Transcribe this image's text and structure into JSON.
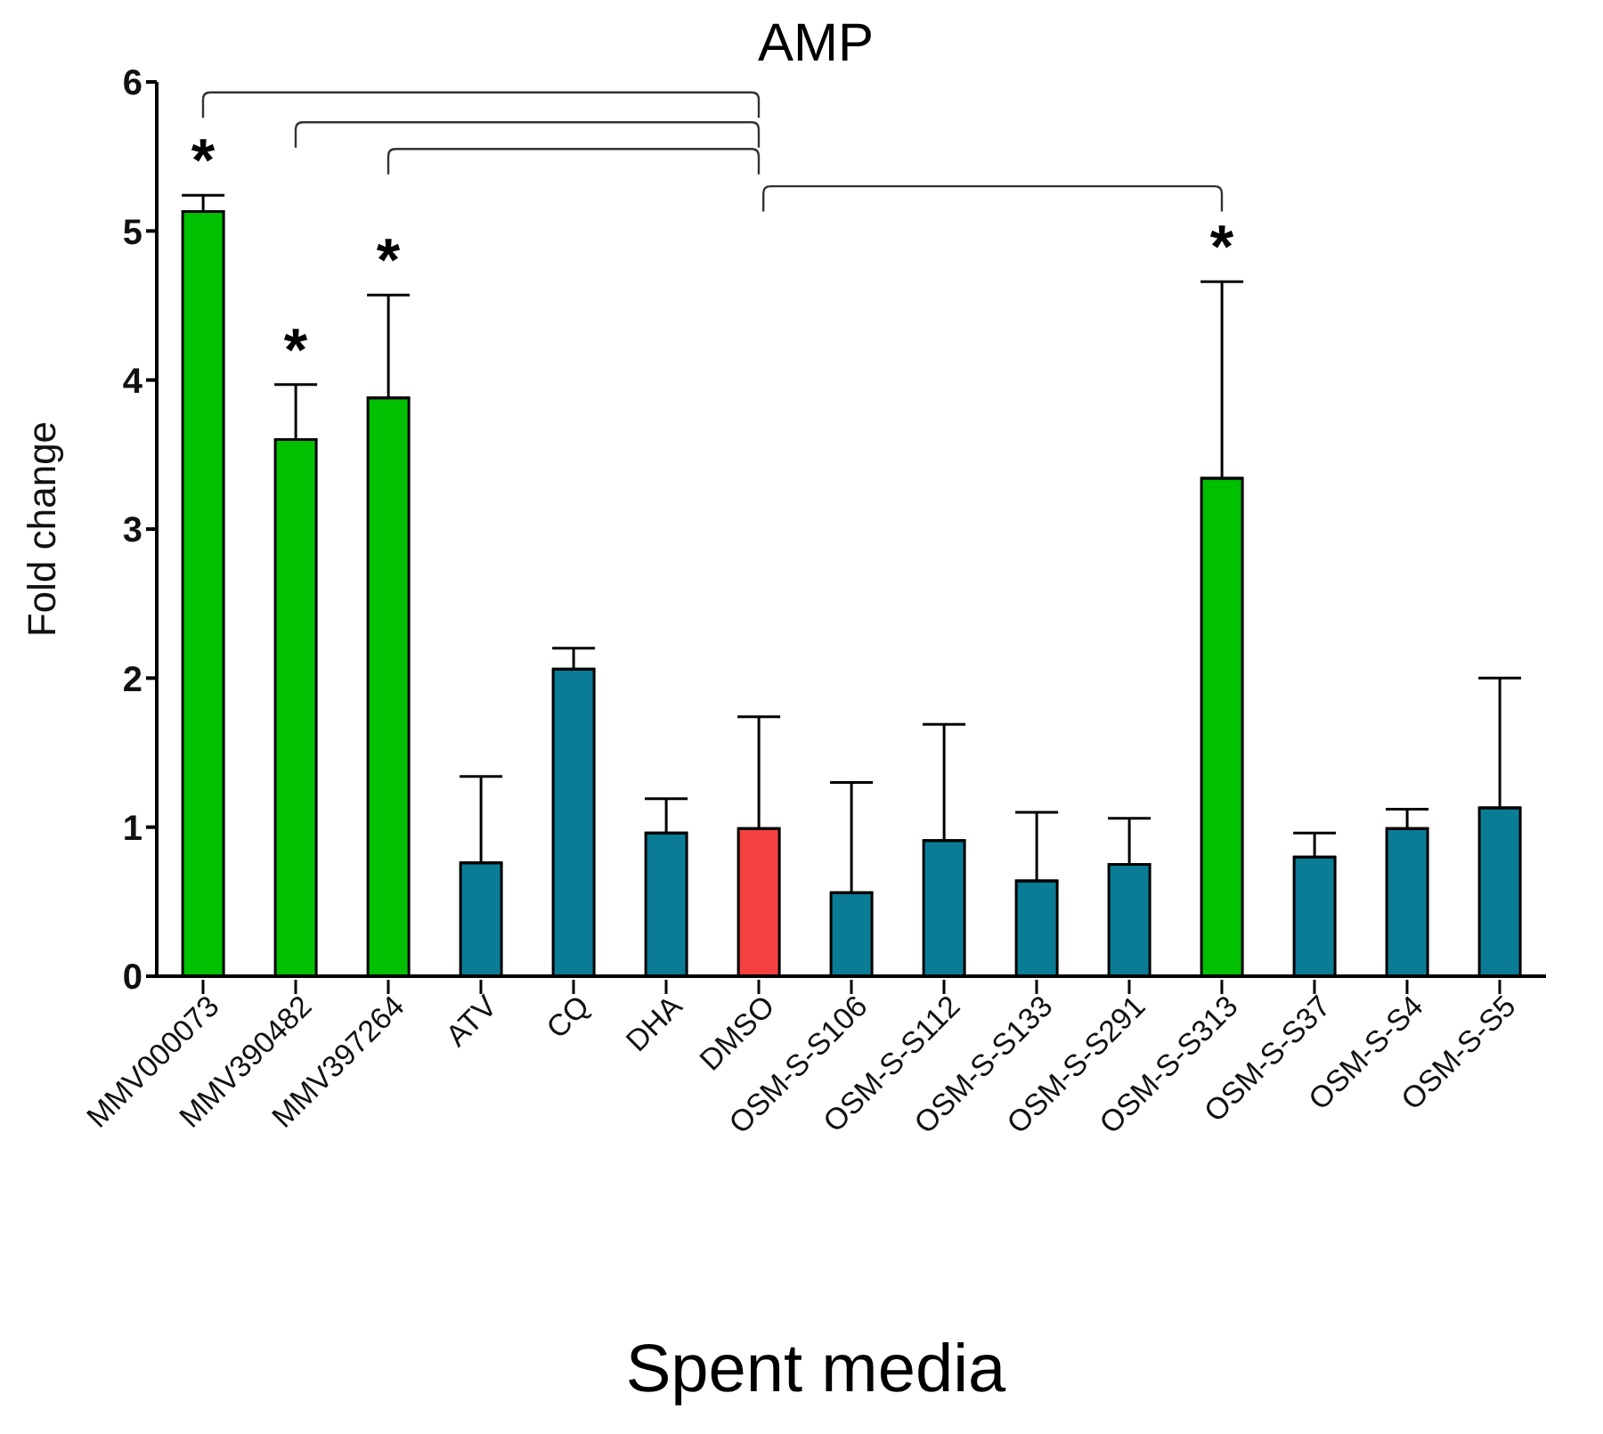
{
  "chart_data": {
    "type": "bar",
    "title": "AMP",
    "xlabel": "Spent media",
    "ylabel": "Fold change",
    "categories": [
      "MMV000073",
      "MMV390482",
      "MMV397264",
      "ATV",
      "CQ",
      "DHA",
      "DMSO",
      "OSM-S-S106",
      "OSM-S-S112",
      "OSM-S-S133",
      "OSM-S-S291",
      "OSM-S-S313",
      "OSM-S-S37",
      "OSM-S-S4",
      "OSM-S-S5"
    ],
    "values": [
      5.13,
      3.6,
      3.88,
      0.76,
      2.06,
      0.96,
      0.99,
      0.56,
      0.91,
      0.64,
      0.75,
      3.34,
      0.8,
      0.99,
      1.13
    ],
    "errors": [
      [
        5.13,
        5.24
      ],
      [
        3.6,
        3.97
      ],
      [
        3.88,
        4.57
      ],
      [
        0.76,
        1.34
      ],
      [
        2.06,
        2.2
      ],
      [
        0.96,
        1.19
      ],
      [
        0.99,
        1.74
      ],
      [
        0.56,
        1.3
      ],
      [
        0.91,
        1.69
      ],
      [
        0.64,
        1.1
      ],
      [
        0.75,
        1.06
      ],
      [
        3.34,
        4.66
      ],
      [
        0.8,
        0.96
      ],
      [
        0.99,
        1.12
      ],
      [
        1.13,
        2.0
      ]
    ],
    "colors": [
      "#00c000",
      "#00c000",
      "#00c000",
      "#0a7c96",
      "#0a7c96",
      "#0a7c96",
      "#f44040",
      "#0a7c96",
      "#0a7c96",
      "#0a7c96",
      "#0a7c96",
      "#00c000",
      "#0a7c96",
      "#0a7c96",
      "#0a7c96"
    ],
    "ylim": [
      0,
      6
    ],
    "yticks": [
      0,
      1,
      2,
      3,
      4,
      5,
      6
    ],
    "grid": false,
    "legend": false,
    "annotations": [
      {
        "text": "*",
        "x": "MMV000073",
        "y": 5.24
      },
      {
        "text": "*",
        "x": "MMV390482",
        "y": 3.97
      },
      {
        "text": "*",
        "x": "MMV397264",
        "y": 4.57
      },
      {
        "text": "*",
        "x": "OSM-S-S313",
        "y": 4.66
      }
    ]
  }
}
